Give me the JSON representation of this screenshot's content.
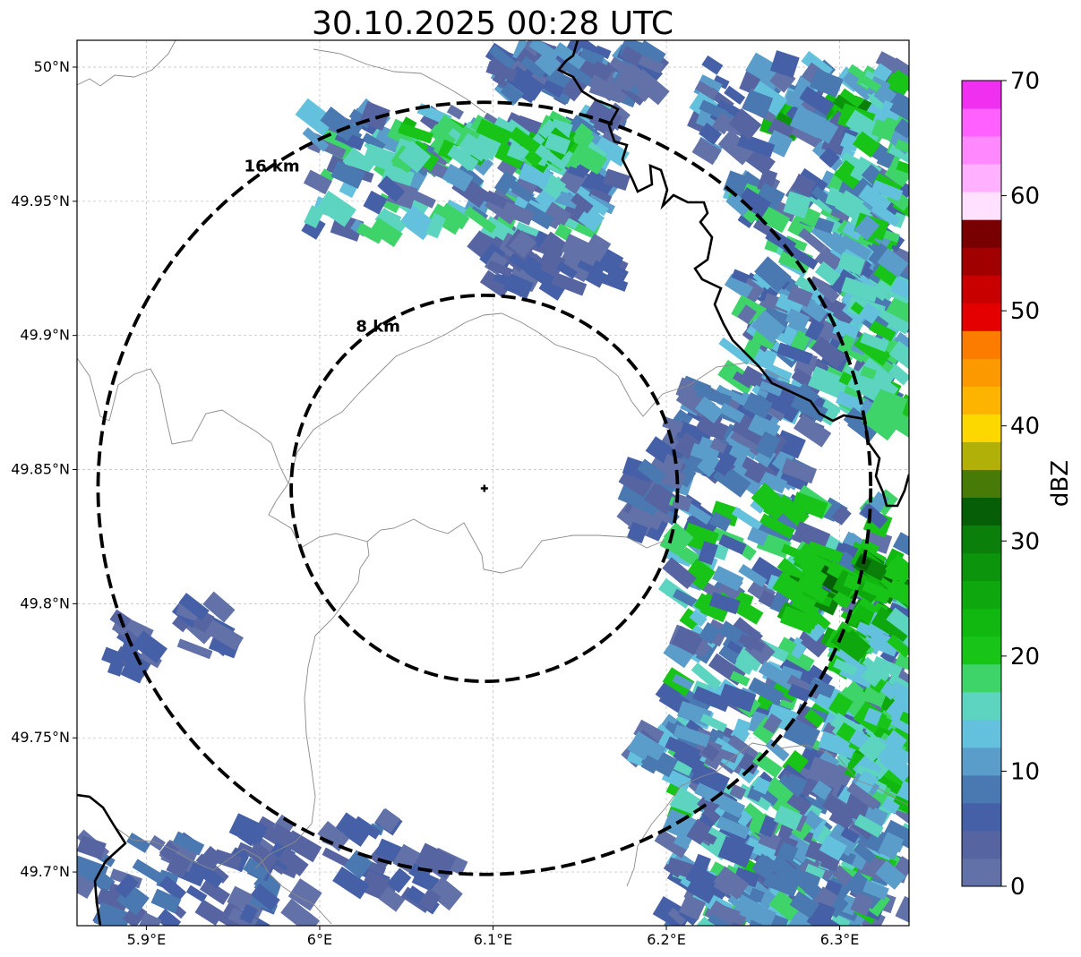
{
  "title": "30.10.2025 00:28 UTC",
  "map": {
    "lon_range": [
      5.86,
      6.34
    ],
    "lat_range": [
      49.68,
      50.01
    ],
    "radar_site": {
      "lon": 6.095,
      "lat": 49.843,
      "marker": "plus-icon"
    },
    "range_rings": [
      {
        "label": "8 km",
        "radius_km": 8
      },
      {
        "label": "16 km",
        "radius_km": 16
      }
    ],
    "x_ticks": [
      {
        "value": 5.9,
        "label": "5.9°E"
      },
      {
        "value": 6.0,
        "label": "6°E"
      },
      {
        "value": 6.1,
        "label": "6.1°E"
      },
      {
        "value": 6.2,
        "label": "6.2°E"
      },
      {
        "value": 6.3,
        "label": "6.3°E"
      }
    ],
    "y_ticks": [
      {
        "value": 50.0,
        "label": "50°N"
      },
      {
        "value": 49.95,
        "label": "49.95°N"
      },
      {
        "value": 49.9,
        "label": "49.9°N"
      },
      {
        "value": 49.85,
        "label": "49.85°N"
      },
      {
        "value": 49.8,
        "label": "49.8°N"
      },
      {
        "value": 49.75,
        "label": "49.75°N"
      },
      {
        "value": 49.7,
        "label": "49.7°N"
      }
    ]
  },
  "colorbar": {
    "label": "dBZ",
    "range": [
      0,
      70
    ],
    "ticks": [
      0,
      10,
      20,
      30,
      40,
      50,
      60,
      70
    ],
    "colors": [
      "#6272a8",
      "#5665a2",
      "#4560a6",
      "#4a78b0",
      "#5a9cca",
      "#63c1dd",
      "#5cd4c0",
      "#3ed46a",
      "#18c418",
      "#10b810",
      "#0ea80e",
      "#0c940c",
      "#0a800a",
      "#065f06",
      "#487a08",
      "#b0b008",
      "#fcd800",
      "#fcb400",
      "#fc9800",
      "#fc7c00",
      "#e40000",
      "#c80000",
      "#a00000",
      "#780000",
      "#ffe0ff",
      "#ffb0ff",
      "#ff88ff",
      "#ff60ff",
      "#f030f0"
    ]
  }
}
